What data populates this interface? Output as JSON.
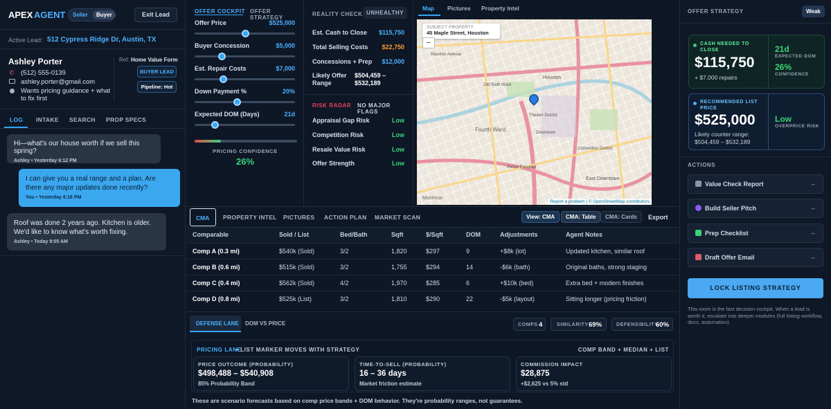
{
  "brand": {
    "name1": "APEX",
    "name2": "AGENT",
    "seller": "Seller",
    "buyer": "Buyer",
    "exit": "Exit Lead"
  },
  "lead": {
    "label": "Active Lead:",
    "address": "512 Cypress Ridge Dr, Austin, TX",
    "name": "Ashley Porter",
    "phone": "(512) 555-0139",
    "email": "ashley.porter@gmail.com",
    "note": "Wants pricing guidance + what to fix first",
    "ref_label": "Ref:",
    "ref_value": "Home Value Form",
    "badge": "BUYER LEAD",
    "pipeline": "Pipeline: Hot"
  },
  "left_tabs": [
    "LOG",
    "INTAKE",
    "SEARCH",
    "PROP SPECS"
  ],
  "messages": [
    {
      "text": "Hi—what's our house worth if we sell this spring?",
      "meta": "Ashley • Yesterday 6:12 PM",
      "side": "in"
    },
    {
      "text": "I can give you a real range and a plan. Are there any major updates done recently?",
      "meta": "You • Yesterday 6:16 PM",
      "side": "out"
    },
    {
      "text": "Roof was done 2 years ago. Kitchen is older. We'd like to know what's worth fixing.",
      "meta": "Ashley • Today 9:05 AM",
      "side": "in"
    }
  ],
  "cockpit": {
    "tab1": "OFFER COCKPIT",
    "tab2": "OFFER STRATEGY",
    "sliders": [
      {
        "label": "Offer Price",
        "value": "$525,000",
        "level": 0.5
      },
      {
        "label": "Buyer Concession",
        "value": "$5,000",
        "level": 0.27
      },
      {
        "label": "Est. Repair Costs",
        "value": "$7,000",
        "level": 0.28
      },
      {
        "label": "Down Payment %",
        "value": "20%",
        "level": 0.42
      },
      {
        "label": "Expected DOM (Days)",
        "value": "21d",
        "level": 0.2
      }
    ],
    "confidence_label": "PRICING CONFIDENCE",
    "confidence_value": "26%",
    "confidence_level": 0.26
  },
  "reality": {
    "tab1": "REALITY CHECKS",
    "tab2": "UNHEALTHY",
    "rows": [
      {
        "label": "Est. Cash to Close",
        "value": "$115,750",
        "color": "#4cb1ff"
      },
      {
        "label": "Total Selling Costs",
        "value": "$22,750",
        "color": "#ff9c33"
      },
      {
        "label": "Concessions + Prep",
        "value": "$12,000",
        "color": "#4cb1ff"
      }
    ],
    "likely_label": "Likely Offer Range",
    "likely_value": "$504,459 – $532,189",
    "radar_label": "RISK RADAR",
    "radar_status": "NO MAJOR FLAGS",
    "risks": [
      {
        "label": "Appraisal Gap Risk",
        "value": "Low"
      },
      {
        "label": "Competition Risk",
        "value": "Low"
      },
      {
        "label": "Resale Value Risk",
        "value": "Low"
      },
      {
        "label": "Offer Strength",
        "value": "Low"
      }
    ]
  },
  "map": {
    "tabs": [
      "Map",
      "Pictures",
      "Property Intel"
    ],
    "subject_label": "SUBJECT PROPERTY",
    "subject_address": "45 Maple Street, Houston TX",
    "attribution": "Report a problem | © OpenStreetMap contributors",
    "places": [
      "Houston",
      "Fourth Ward",
      "Theater District",
      "Downtown",
      "Montrose",
      "Pierce Elevated",
      "Old Sixth Ward",
      "East Downtown",
      "Houston Avenue",
      "Convention District"
    ]
  },
  "cma": {
    "tabs": [
      "CMA",
      "PROPERTY INTEL",
      "PICTURES",
      "ACTION PLAN",
      "MARKET SCAN"
    ],
    "views": [
      "View: CMA",
      "CMA: Table",
      "CMA: Cards",
      "Export"
    ],
    "headers": [
      "Comparable",
      "Sold / List",
      "Bed/Bath",
      "Sqft",
      "$/Sqft",
      "DOM",
      "Adjustments",
      "Agent Notes"
    ],
    "rows": [
      [
        "Comp A (0.3 mi)",
        "$540k (Sold)",
        "3/2",
        "1,820",
        "$297",
        "9",
        "+$8k (lot)",
        "Updated kitchen, similar roof"
      ],
      [
        "Comp B (0.6 mi)",
        "$515k (Sold)",
        "3/2",
        "1,755",
        "$294",
        "14",
        "-$6k (bath)",
        "Original baths, strong staging"
      ],
      [
        "Comp C (0.4 mi)",
        "$562k (Sold)",
        "4/2",
        "1,970",
        "$285",
        "6",
        "+$10k (bed)",
        "Extra bed + modern finishes"
      ],
      [
        "Comp D (0.8 mi)",
        "$525k (List)",
        "3/2",
        "1,810",
        "$290",
        "22",
        "-$5k (layout)",
        "Sitting longer (pricing friction)"
      ]
    ]
  },
  "lane": {
    "tabs": [
      "DEFENSE LANE",
      "DOM VS PRICE"
    ],
    "stats": [
      {
        "label": "COMPS",
        "value": "4"
      },
      {
        "label": "SIMILARITY",
        "value": "69%"
      },
      {
        "label": "DEFENSIBILITY",
        "value": "60%"
      }
    ],
    "title": "PRICING LANE",
    "subtitle": "• LIST MARKER MOVES WITH STRATEGY",
    "right": "COMP BAND + MEDIAN + LIST",
    "cards": [
      {
        "label": "PRICE OUTCOME (PROBABILITY)",
        "value": "$498,488 – $540,908",
        "sub": "85% Probability Band"
      },
      {
        "label": "TIME-TO-SELL (PROBABILITY)",
        "value": "16 – 36 days",
        "sub": "Market friction estimate"
      },
      {
        "label": "COMMISSION IMPACT",
        "value": "$28,875",
        "sub": "+$2,625 vs 5% std"
      }
    ],
    "footnote": "These are scenario forecasts based on comp price bands + DOM behavior. They're probability ranges, not guarantees."
  },
  "strategy": {
    "title": "OFFER STRATEGY",
    "badge": "Weak",
    "cash_label": "CASH NEEDED TO CLOSE",
    "cash_value": "$115,750",
    "cash_sub": "+ $7,000 repairs",
    "dom_value": "21d",
    "dom_label": "EXPECTED DOM",
    "conf_value": "26%",
    "conf_label": "CONFIDENCE",
    "list_label": "RECOMMENDED LIST PRICE",
    "list_value": "$525,000",
    "list_sub": "Likely counter range: $504,459 – $532,189",
    "risk_value": "Low",
    "risk_label": "OVERPRICE RISK",
    "actions_label": "ACTIONS",
    "actions": [
      "Value Check Report",
      "Build Seller Pitch",
      "Prep Checklist",
      "Draft Offer Email"
    ],
    "lock": "LOCK LISTING STRATEGY",
    "note": "This room is the fast decision cockpit. When a lead is worth it, escalate into deeper modules (full listing workflow, docs, automation)."
  },
  "colors": {
    "accent": "#35a7f5",
    "green": "#3ad37a",
    "orange": "#ff9c33",
    "panel": "#0f1827"
  }
}
